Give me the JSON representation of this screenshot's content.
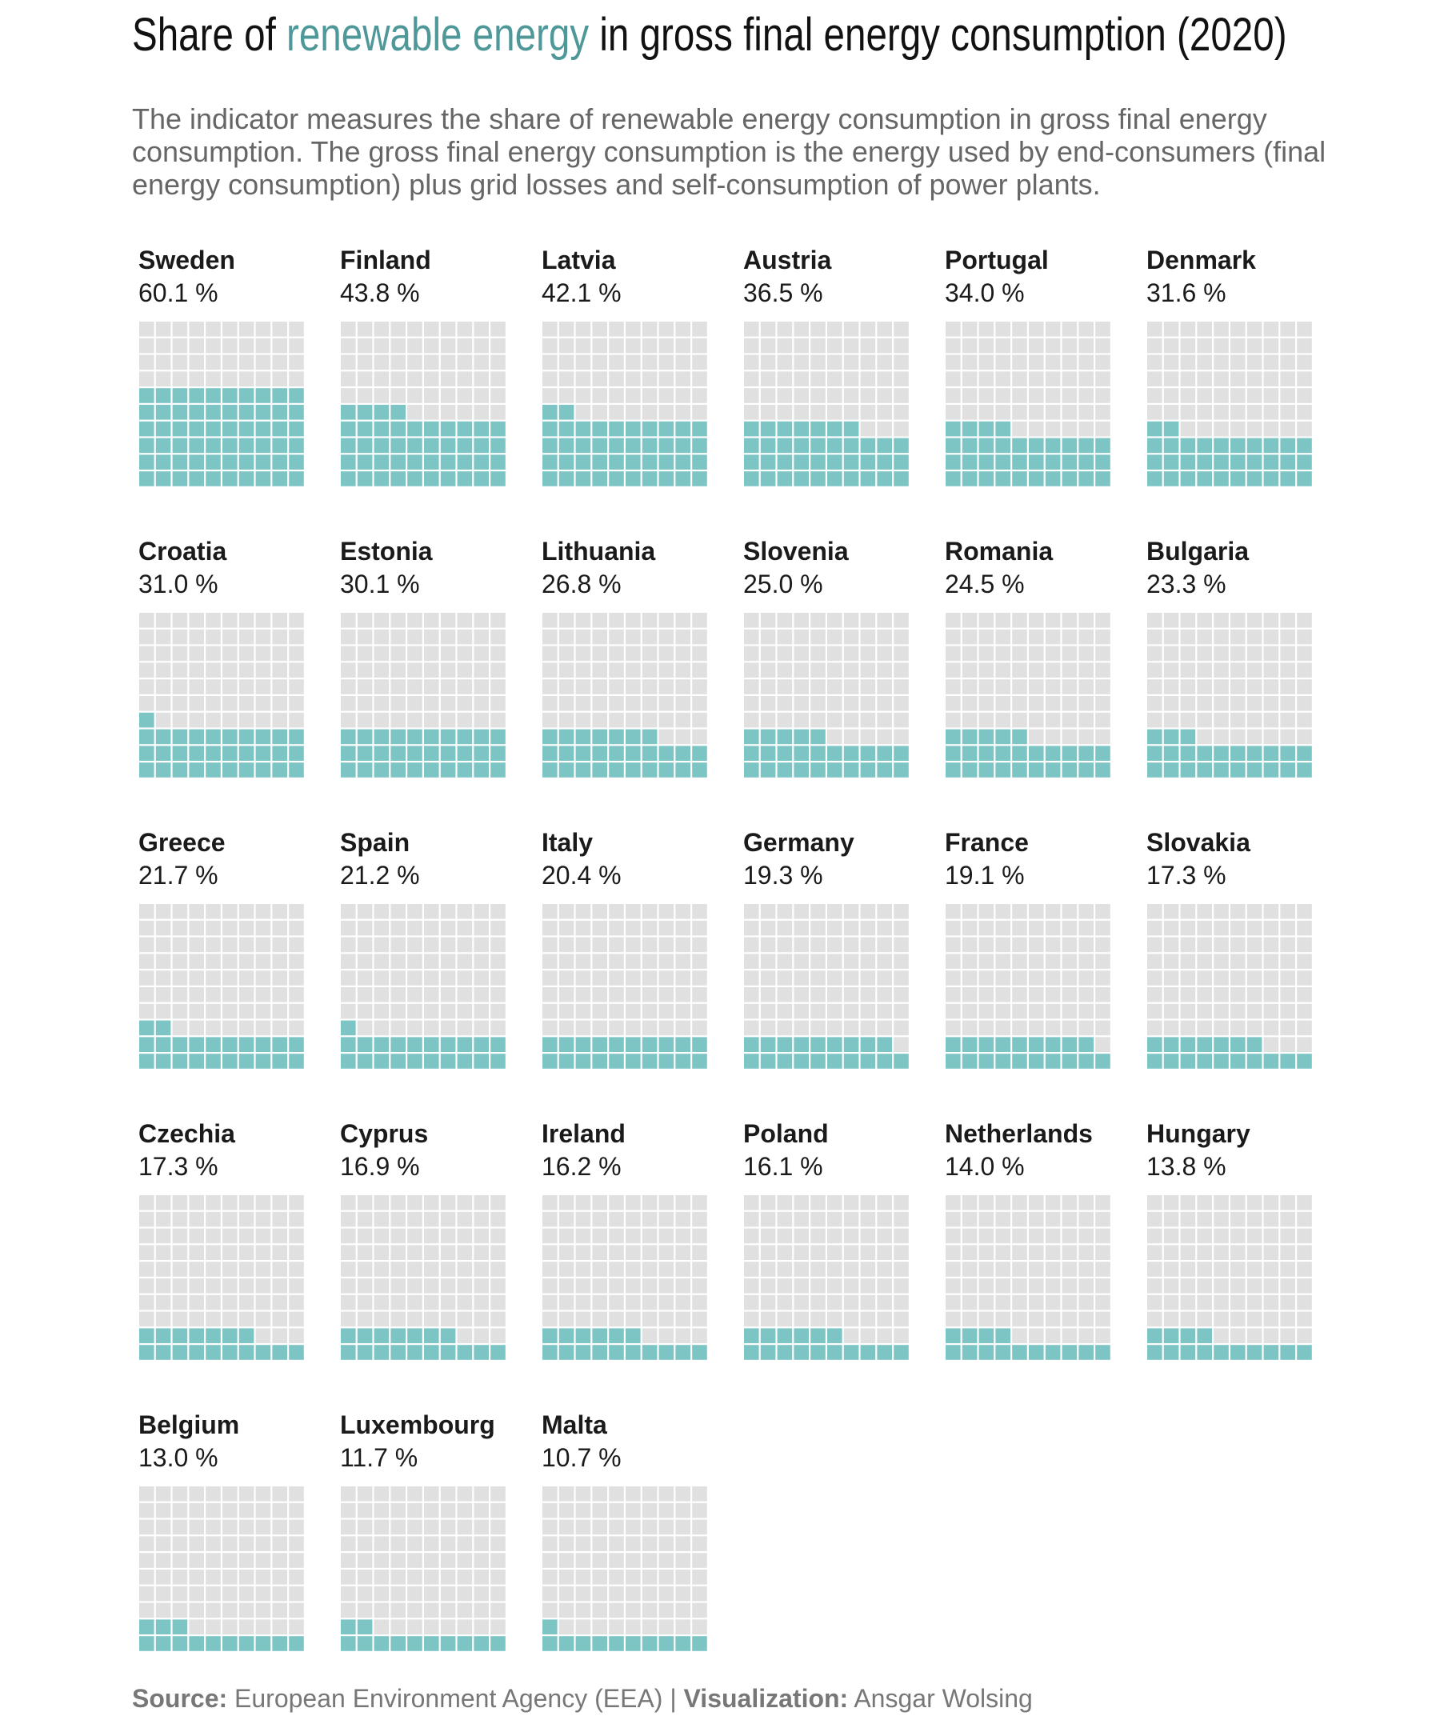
{
  "title": {
    "before": "Share of",
    "highlight": "renewable energy",
    "after": "in gross final energy consumption (2020)"
  },
  "subtitle": "The indicator measures the share of renewable energy consumption in gross final energy consumption. The gross final energy consumption is the energy used by end-consumers (final energy consumption) plus grid losses and self-consumption of power plants.",
  "footer": {
    "source_label": "Source:",
    "source_text": "European Environment Agency (EEA)",
    "separator": "|",
    "viz_label": "Visualization:",
    "viz_text": "Ansgar Wolsing"
  },
  "colors": {
    "filled": "#7dc5c4",
    "empty": "#e0e0e0",
    "accent": "#4f9899"
  },
  "chart_data": {
    "type": "waffle",
    "unit": "%",
    "cells_per_waffle": 100,
    "grid": "10x10",
    "items": [
      {
        "country": "Sweden",
        "value": 60.1,
        "label": "60.1 %"
      },
      {
        "country": "Finland",
        "value": 43.8,
        "label": "43.8 %"
      },
      {
        "country": "Latvia",
        "value": 42.1,
        "label": "42.1 %"
      },
      {
        "country": "Austria",
        "value": 36.5,
        "label": "36.5 %"
      },
      {
        "country": "Portugal",
        "value": 34.0,
        "label": "34.0 %"
      },
      {
        "country": "Denmark",
        "value": 31.6,
        "label": "31.6 %"
      },
      {
        "country": "Croatia",
        "value": 31.0,
        "label": "31.0 %"
      },
      {
        "country": "Estonia",
        "value": 30.1,
        "label": "30.1 %"
      },
      {
        "country": "Lithuania",
        "value": 26.8,
        "label": "26.8 %"
      },
      {
        "country": "Slovenia",
        "value": 25.0,
        "label": "25.0 %"
      },
      {
        "country": "Romania",
        "value": 24.5,
        "label": "24.5 %"
      },
      {
        "country": "Bulgaria",
        "value": 23.3,
        "label": "23.3 %"
      },
      {
        "country": "Greece",
        "value": 21.7,
        "label": "21.7 %"
      },
      {
        "country": "Spain",
        "value": 21.2,
        "label": "21.2 %"
      },
      {
        "country": "Italy",
        "value": 20.4,
        "label": "20.4 %"
      },
      {
        "country": "Germany",
        "value": 19.3,
        "label": "19.3 %"
      },
      {
        "country": "France",
        "value": 19.1,
        "label": "19.1 %"
      },
      {
        "country": "Slovakia",
        "value": 17.3,
        "label": "17.3 %"
      },
      {
        "country": "Czechia",
        "value": 17.3,
        "label": "17.3 %"
      },
      {
        "country": "Cyprus",
        "value": 16.9,
        "label": "16.9 %"
      },
      {
        "country": "Ireland",
        "value": 16.2,
        "label": "16.2 %"
      },
      {
        "country": "Poland",
        "value": 16.1,
        "label": "16.1 %"
      },
      {
        "country": "Netherlands",
        "value": 14.0,
        "label": "14.0 %"
      },
      {
        "country": "Hungary",
        "value": 13.8,
        "label": "13.8 %"
      },
      {
        "country": "Belgium",
        "value": 13.0,
        "label": "13.0 %"
      },
      {
        "country": "Luxembourg",
        "value": 11.7,
        "label": "11.7 %"
      },
      {
        "country": "Malta",
        "value": 10.7,
        "label": "10.7 %"
      }
    ]
  }
}
